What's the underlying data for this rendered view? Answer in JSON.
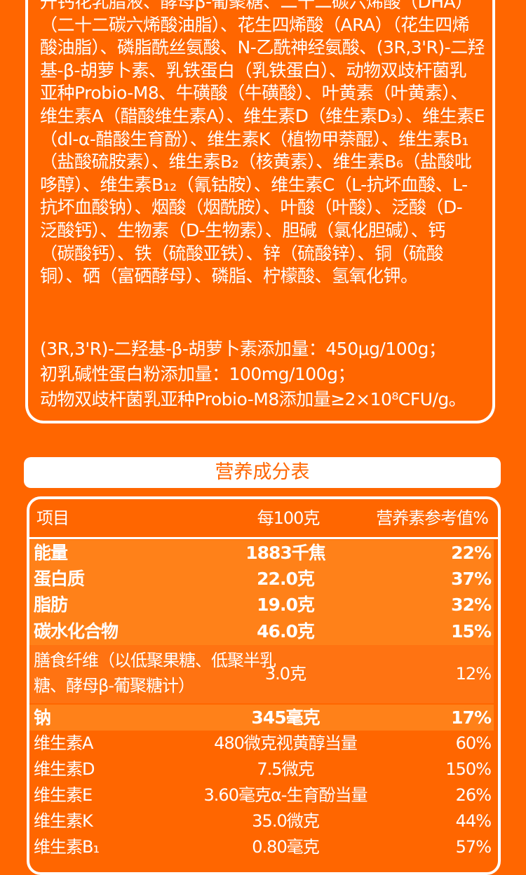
{
  "ingredients": {
    "lines": [
      "升钙花乳脂液、酵母β-葡聚糖、二十二碳六烯酸（DHA）",
      "（二十二碳六烯酸油脂）、花生四烯酸（ARA）（花生四烯",
      "酸油脂）、磷脂酰丝氨酸、N-乙酰神经氨酸、(3R,3'R)-二羟",
      "基-β-胡萝卜素、乳铁蛋白（乳铁蛋白）、动物双歧杆菌乳",
      "亚种Probio-M8、牛磺酸（牛磺酸）、叶黄素（叶黄素）、",
      "维生素A（醋酸维生素A）、维生素D（维生素D₃）、维生素E",
      "（dl-α-醋酸生育酚）、维生素K（植物甲萘醌）、维生素B₁",
      "（盐酸硫胺素）、维生素B₂（核黄素）、维生素B₆（盐酸吡",
      "哆醇）、维生素B₁₂（氰钴胺）、维生素C（L-抗坏血酸、L-",
      "抗坏血酸钠）、烟酸（烟酰胺）、叶酸（叶酸）、泛酸（D-",
      "泛酸钙）、生物素（D-生物素）、胆碱（氯化胆碱）、钙",
      "（碳酸钙）、铁（硫酸亚铁）、锌（硫酸锌）、铜（硫酸",
      "铜）、硒（富硒酵母）、磷脂、柠檬酸、氢氧化钾。"
    ],
    "additions": [
      "(3R,3'R)-二羟基-β-胡萝卜素添加量：450μg/100g；",
      "初乳碱性蛋白粉添加量：100mg/100g；",
      "动物双歧杆菌乳亚种Probio-M8添加量≥2×10⁸CFU/g。"
    ]
  },
  "nutrition": {
    "title": "营养成分表",
    "headers": {
      "item": "项目",
      "per100": "每100克",
      "nrv": "营养素参考值%"
    },
    "rows": [
      {
        "name": "能量",
        "value": "1883千焦",
        "nrv": "22%",
        "bold": true
      },
      {
        "name": "蛋白质",
        "value": "22.0克",
        "nrv": "37%",
        "bold": true
      },
      {
        "name": "脂肪",
        "value": "19.0克",
        "nrv": "32%",
        "bold": true
      },
      {
        "name": "碳水化合物",
        "value": "46.0克",
        "nrv": "15%",
        "bold": true
      },
      {
        "name": "膳食纤维（以低聚果糖、低聚半乳糖、酵母β-葡聚糖计）",
        "name_line1": "膳食纤维（以低聚果糖、低聚半乳",
        "name_line2": "糖、酵母β-葡聚糖计）",
        "value": "3.0克",
        "nrv": "12%",
        "bold": false
      },
      {
        "name": "钠",
        "value": "345毫克",
        "nrv": "17%",
        "bold": true
      },
      {
        "name": "维生素A",
        "value": "480微克视黄醇当量",
        "nrv": "60%",
        "bold": false
      },
      {
        "name": "维生素D",
        "value": "7.5微克",
        "nrv": "150%",
        "bold": false
      },
      {
        "name": "维生素E",
        "value": "3.60毫克α-生育酚当量",
        "nrv": "26%",
        "bold": false
      },
      {
        "name": "维生素K",
        "value": "35.0微克",
        "nrv": "44%",
        "bold": false
      },
      {
        "name": "维生素B₁",
        "value": "0.80毫克",
        "nrv": "57%",
        "bold": false
      }
    ]
  },
  "colors": {
    "background": "#ff6600",
    "highlight_band": "#ff8119",
    "fiber_band": "#ff7312",
    "text": "#ffffff"
  }
}
